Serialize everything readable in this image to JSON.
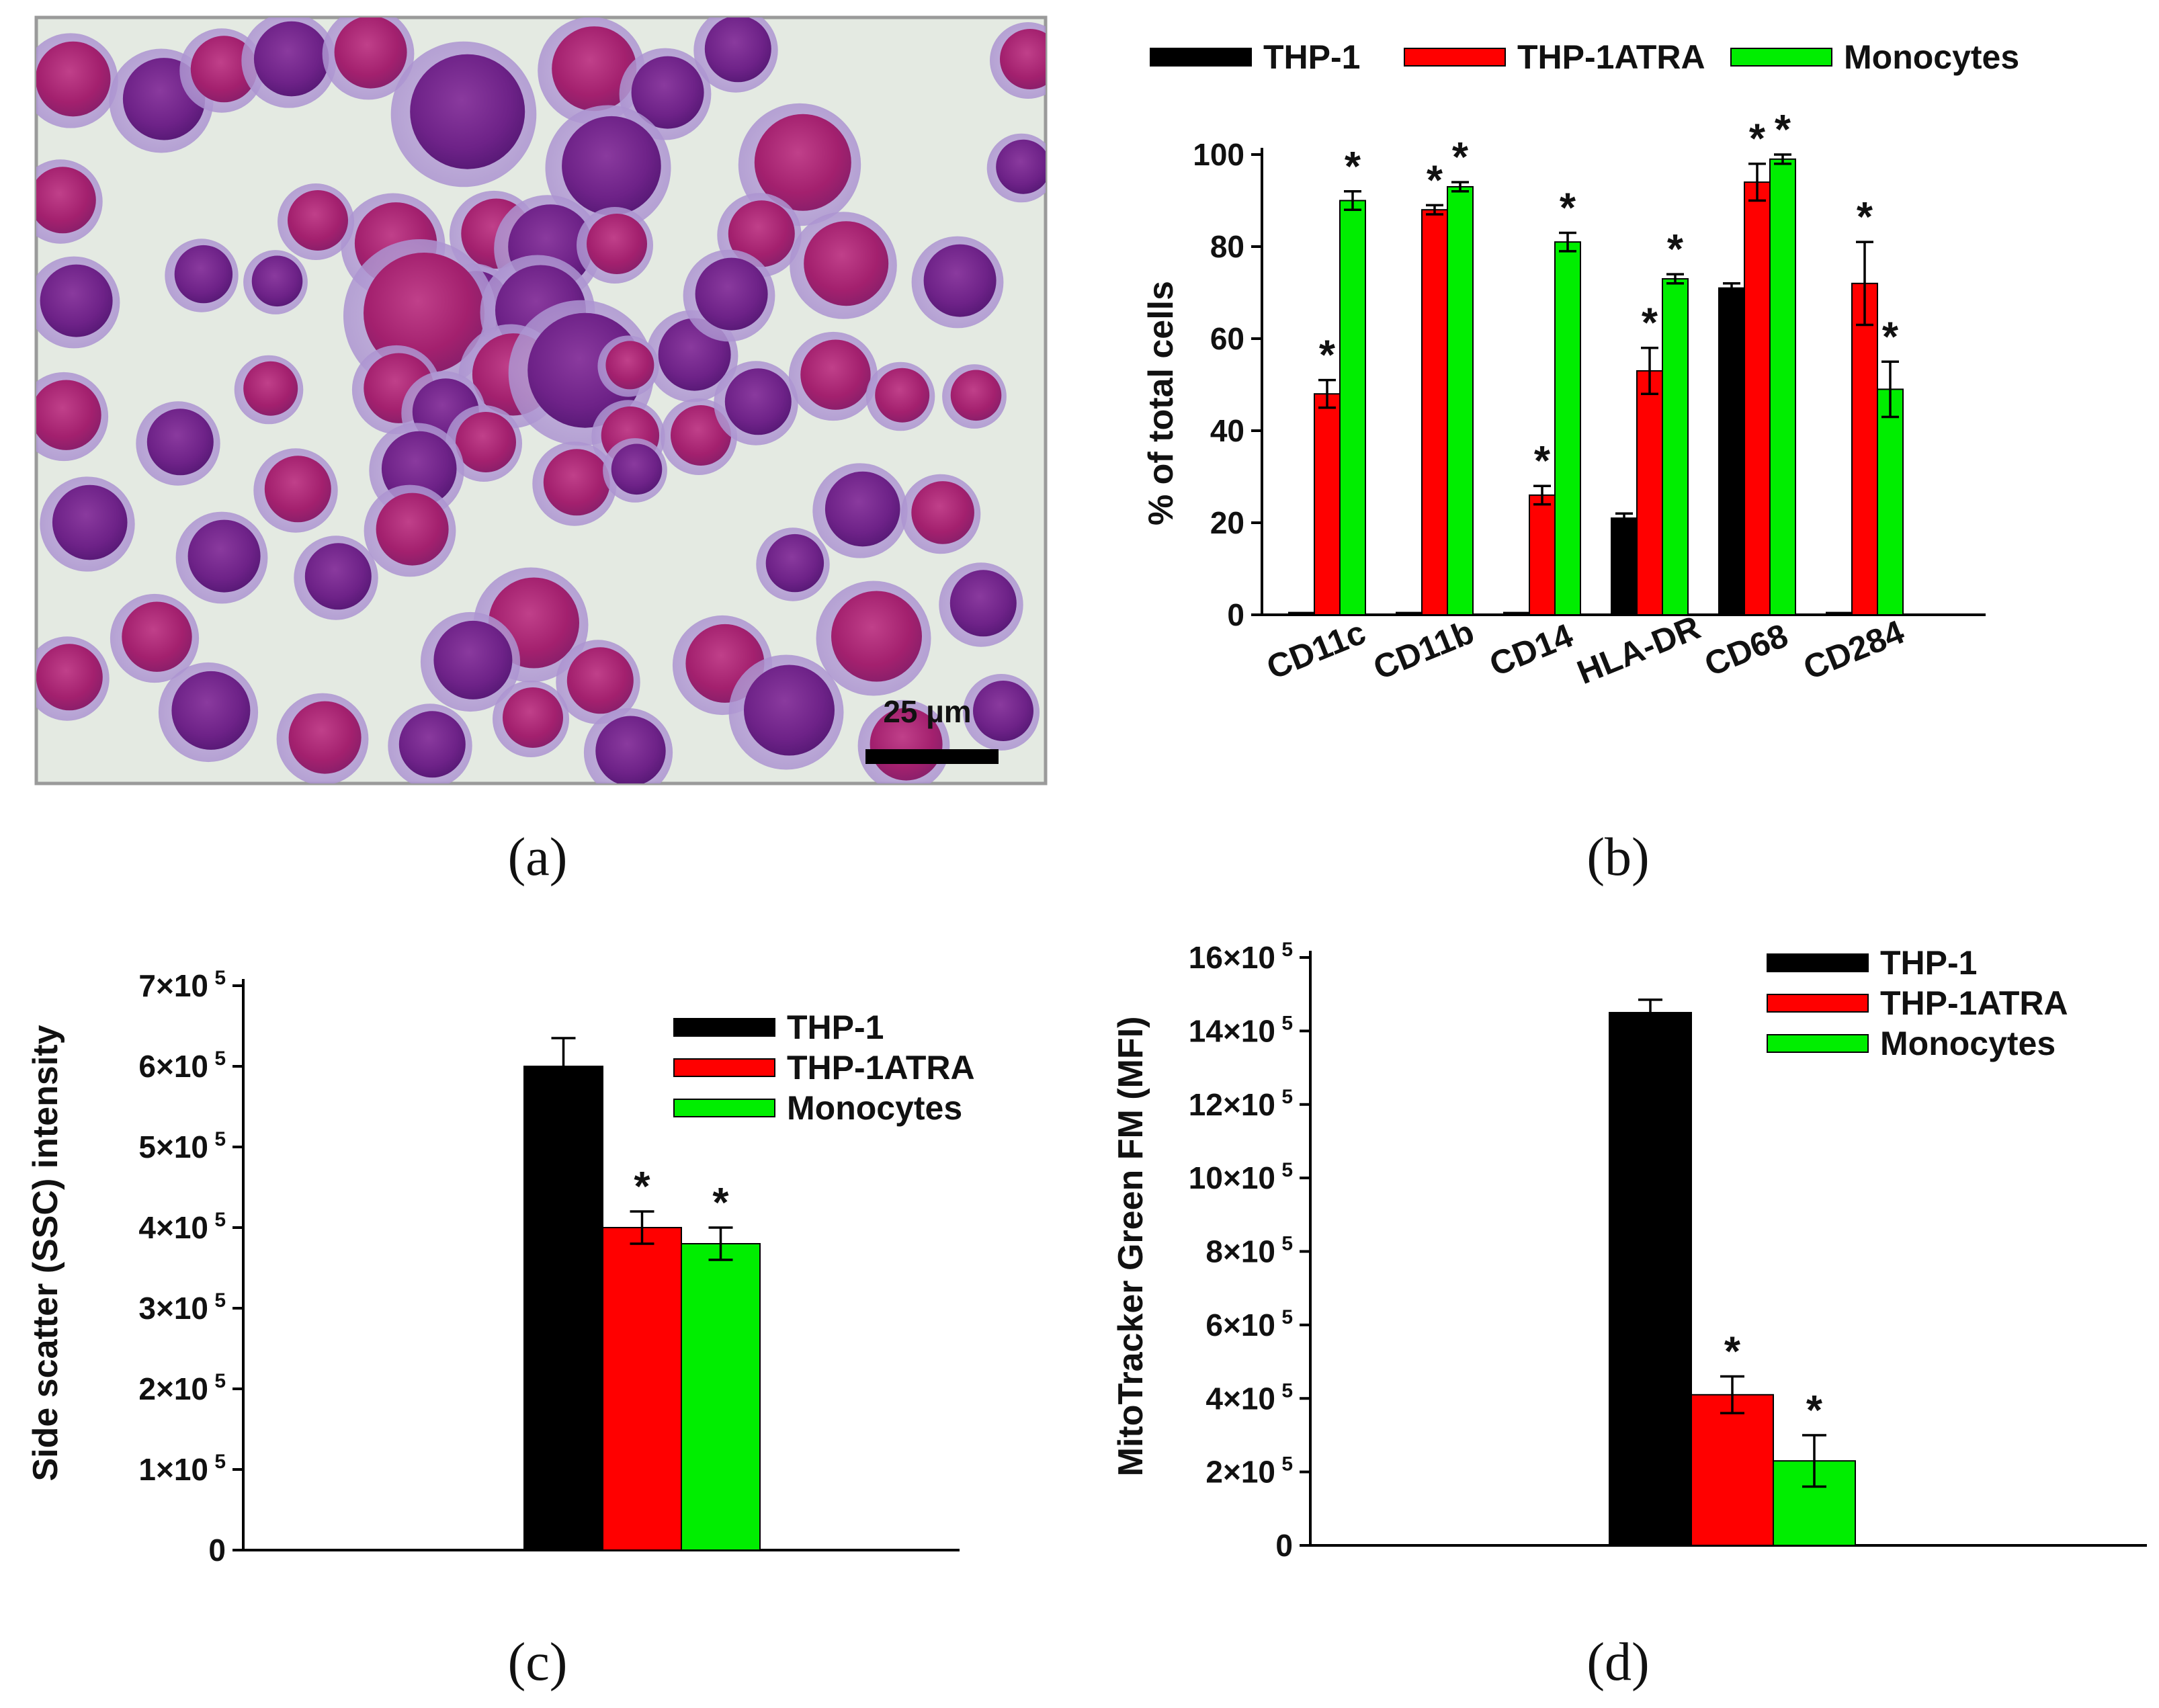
{
  "colors": {
    "THP-1": "#000000",
    "THP-1ATRA": "#ff0000",
    "Monocytes": "#00ee00"
  },
  "panel_labels": [
    "(a)",
    "(b)",
    "(c)",
    "(d)"
  ],
  "micrograph": {
    "scale_bar_label": "25 µm"
  },
  "chart_data": [
    {
      "type": "bar",
      "panel": "(b)",
      "categories": [
        "CD11c",
        "CD11b",
        "CD14",
        "HLA-DR",
        "CD68",
        "CD284"
      ],
      "series": [
        {
          "name": "THP-1",
          "values": [
            0.5,
            0.5,
            0.5,
            21,
            71,
            0.5
          ],
          "errors": [
            0,
            0,
            0,
            1,
            1,
            0
          ]
        },
        {
          "name": "THP-1ATRA",
          "values": [
            48,
            88,
            26,
            53,
            94,
            72
          ],
          "errors": [
            3,
            1,
            2,
            5,
            4,
            9
          ]
        },
        {
          "name": "Monocytes",
          "values": [
            90,
            93,
            81,
            73,
            99,
            49
          ],
          "errors": [
            2,
            1,
            2,
            1,
            1,
            6
          ]
        }
      ],
      "significance": [
        [
          0,
          1
        ],
        [
          0,
          2
        ],
        [
          1,
          1
        ],
        [
          1,
          2
        ],
        [
          2,
          1
        ],
        [
          2,
          2
        ],
        [
          3,
          1
        ],
        [
          3,
          2
        ],
        [
          4,
          1
        ],
        [
          4,
          2
        ],
        [
          5,
          1
        ],
        [
          5,
          2
        ]
      ],
      "ylabel": "% of total cells",
      "ylim": [
        0,
        100
      ],
      "yticks": [
        0,
        20,
        40,
        60,
        80,
        100
      ],
      "ytick_labels": [
        "0",
        "20",
        "40",
        "60",
        "80",
        "100"
      ],
      "legend_position": "top",
      "significance_marker": "*"
    },
    {
      "type": "bar",
      "panel": "(c)",
      "categories": [
        ""
      ],
      "series": [
        {
          "name": "THP-1",
          "values": [
            600000
          ],
          "errors": [
            35000
          ]
        },
        {
          "name": "THP-1ATRA",
          "values": [
            400000
          ],
          "errors": [
            20000
          ]
        },
        {
          "name": "Monocytes",
          "values": [
            380000
          ],
          "errors": [
            20000
          ]
        }
      ],
      "significance": [
        [
          0,
          1
        ],
        [
          0,
          2
        ]
      ],
      "ylabel": "Side scatter  (SSC) intensity",
      "ylim": [
        0,
        700000
      ],
      "yticks": [
        0,
        100000,
        200000,
        300000,
        400000,
        500000,
        600000,
        700000
      ],
      "ytick_labels": [
        "0",
        "1×10",
        "2×10",
        "3×10",
        "4×10",
        "5×10",
        "6×10",
        "7×10"
      ],
      "ytick_exponent": "5",
      "legend_position": "top-right",
      "significance_marker": "*"
    },
    {
      "type": "bar",
      "panel": "(d)",
      "categories": [
        ""
      ],
      "series": [
        {
          "name": "THP-1",
          "values": [
            1450000
          ],
          "errors": [
            35000
          ]
        },
        {
          "name": "THP-1ATRA",
          "values": [
            410000
          ],
          "errors": [
            50000
          ]
        },
        {
          "name": "Monocytes",
          "values": [
            230000
          ],
          "errors": [
            70000
          ]
        }
      ],
      "significance": [
        [
          0,
          1
        ],
        [
          0,
          2
        ]
      ],
      "ylabel": "MitoTracker Green FM (MFI)",
      "ylim": [
        0,
        1600000
      ],
      "yticks": [
        0,
        200000,
        400000,
        600000,
        800000,
        1000000,
        1200000,
        1400000,
        1600000
      ],
      "ytick_labels": [
        "0",
        "2×10",
        "4×10",
        "6×10",
        "8×10",
        "10×10",
        "12×10",
        "14×10",
        "16×10"
      ],
      "ytick_exponent": "5",
      "legend_position": "top-right",
      "significance_marker": "*"
    }
  ]
}
